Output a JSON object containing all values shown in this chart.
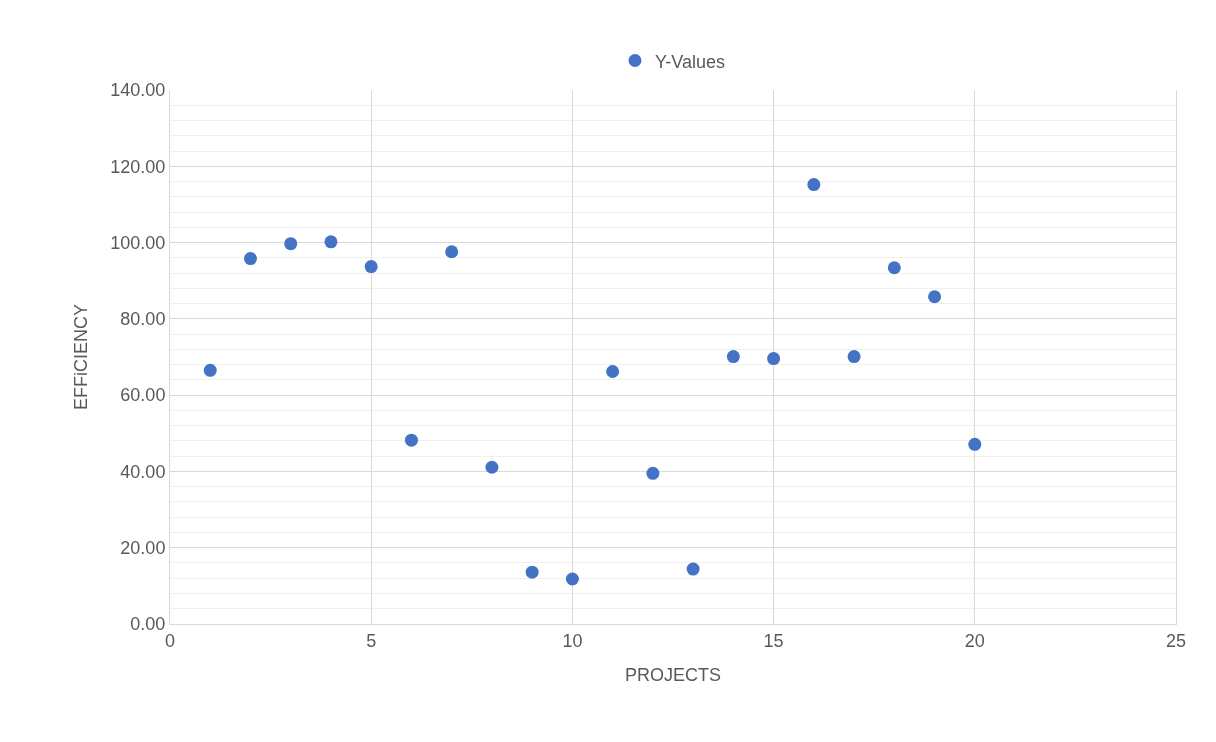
{
  "chart_data": {
    "type": "scatter",
    "xlabel": "PROJECTS",
    "ylabel": "EFFiCIENCY",
    "x": [
      1,
      2,
      3,
      4,
      5,
      6,
      7,
      8,
      9,
      10,
      11,
      12,
      13,
      14,
      15,
      16,
      17,
      18,
      19,
      20
    ],
    "series": [
      {
        "name": "Y-Values",
        "color": "#4472c4",
        "values": [
          66.5,
          95.8,
          99.7,
          100.2,
          93.7,
          48.2,
          97.6,
          41.1,
          13.6,
          11.8,
          66.2,
          39.5,
          14.4,
          70.1,
          69.6,
          115.2,
          70.1,
          93.4,
          85.8,
          47.1
        ]
      }
    ],
    "xlim": [
      0,
      25
    ],
    "xticks": [
      0,
      5,
      10,
      15,
      20,
      25
    ],
    "ylim": [
      0,
      140
    ],
    "yticks": [
      {
        "value": 0,
        "label": "0.00"
      },
      {
        "value": 20,
        "label": "20.00"
      },
      {
        "value": 40,
        "label": "40.00"
      },
      {
        "value": 60,
        "label": "60.00"
      },
      {
        "value": 80,
        "label": "80.00"
      },
      {
        "value": 100,
        "label": "100.00"
      },
      {
        "value": 120,
        "label": "120.00"
      },
      {
        "value": 140,
        "label": "140.00"
      }
    ],
    "grid": true,
    "legend": "top",
    "marker": "circle"
  }
}
